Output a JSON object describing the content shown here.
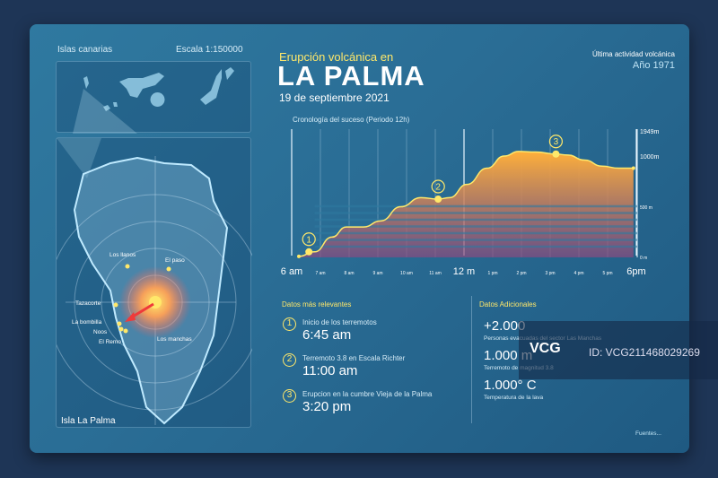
{
  "map": {
    "region_label": "Islas canarias",
    "scale": "Escala 1:150000",
    "island_label": "Isla La Palma",
    "towns": [
      "Los llanos",
      "El paso",
      "Tazacorte",
      "La bombilla",
      "Noos",
      "El Remo",
      "Los manchas"
    ]
  },
  "header": {
    "subtitle": "Erupción volcánica en",
    "title": "LA PALMA",
    "date": "19 de septiembre 2021",
    "last_activity_label": "Última actividad volcánica",
    "last_activity_year": "Año 1971"
  },
  "chart_data": {
    "type": "area",
    "title": "Cronología del suceso (Periodo 12h)",
    "x_tick_labels": [
      "6 am",
      "7 am",
      "8 am",
      "9 am",
      "10 am",
      "11 am",
      "12 m",
      "1 pm",
      "2 pm",
      "3 pm",
      "4 pm",
      "5 pm",
      "6pm"
    ],
    "y_tick_labels": [
      "1949m",
      "1000m",
      "500 m",
      "0 m"
    ],
    "y_ticks": [
      1949,
      1000,
      500,
      0
    ],
    "xlim": [
      6,
      18
    ],
    "ylim": [
      0,
      1949
    ],
    "x": [
      6.25,
      6.8,
      7.4,
      7.9,
      8.5,
      9.1,
      9.8,
      10.5,
      11.1,
      11.5,
      12.1,
      12.8,
      13.4,
      13.9,
      14.5,
      15.2,
      15.6,
      16.2,
      16.8,
      17.4,
      17.9
    ],
    "y": [
      10,
      55,
      200,
      300,
      300,
      360,
      500,
      590,
      575,
      590,
      720,
      880,
      1000,
      1045,
      1040,
      1020,
      1010,
      960,
      900,
      880,
      880
    ],
    "events": [
      {
        "label": "1",
        "x": 6.6,
        "y": 55
      },
      {
        "label": "2",
        "x": 11.1,
        "y": 575
      },
      {
        "label": "3",
        "x": 15.2,
        "y": 1020
      }
    ]
  },
  "events": {
    "heading": "Datos más relevantes",
    "items": [
      {
        "num": "1",
        "label": "Inicio de los terremotos",
        "time": "6:45 am"
      },
      {
        "num": "2",
        "label": "Terremoto 3.8 en Escala Richter",
        "time": "11:00 am"
      },
      {
        "num": "3",
        "label": "Erupcion en la cumbre Vieja de la Palma",
        "time": "3:20 pm"
      }
    ]
  },
  "additional": {
    "heading": "Datos Adicionales",
    "items": [
      {
        "value": "+2.000",
        "label": "Personas evacuadas del sector Las Manchas"
      },
      {
        "value": "1.000 m",
        "label": "Terremoto de magnitud 3.8"
      },
      {
        "value": "1.000° C",
        "label": "Temperatura de la lava"
      }
    ]
  },
  "footer": {
    "sources": "Fuentes..."
  },
  "watermark": {
    "logo": "VCG",
    "id": "ID: VCG211468029269"
  }
}
